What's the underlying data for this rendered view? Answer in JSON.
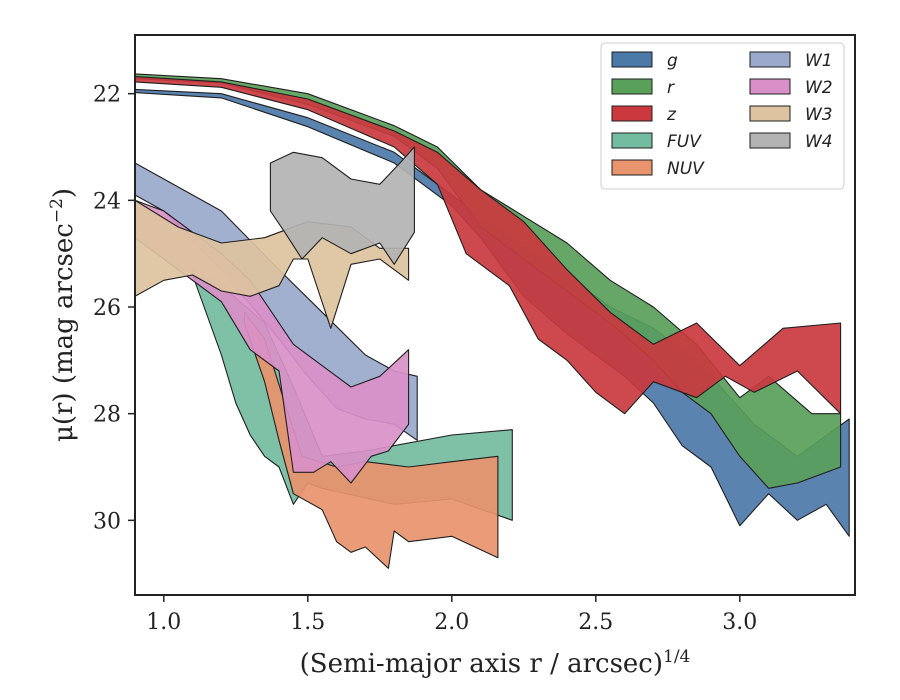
{
  "chart_data": {
    "type": "area",
    "xlabel": "(Semi-major axis r / arcsec)",
    "xlabel_sup": "1/4",
    "ylabel": "μ(r) (mag arcsec",
    "ylabel_sup": "−2",
    "ylabel_close": ")",
    "xlim": [
      0.9,
      3.4
    ],
    "ylim": [
      31.4,
      20.9
    ],
    "y_inverted": true,
    "xticks": [
      1.0,
      1.5,
      2.0,
      2.5,
      3.0
    ],
    "xtick_labels": [
      "1.0",
      "1.5",
      "2.0",
      "2.5",
      "3.0"
    ],
    "yticks": [
      22,
      24,
      26,
      28,
      30
    ],
    "ytick_labels": [
      "22",
      "24",
      "26",
      "28",
      "30"
    ],
    "legend_position": "top-right",
    "legend_columns": 2,
    "series": [
      {
        "name": "g",
        "color": "#4c7aa8",
        "upper": [
          [
            0.9,
            21.92
          ],
          [
            1.2,
            22.0
          ],
          [
            1.5,
            22.45
          ],
          [
            1.8,
            23.1
          ],
          [
            2.0,
            23.9
          ],
          [
            2.2,
            24.7
          ],
          [
            2.4,
            25.4
          ],
          [
            2.55,
            26.0
          ],
          [
            2.7,
            26.4
          ],
          [
            2.85,
            27.0
          ],
          [
            2.95,
            27.6
          ],
          [
            3.05,
            28.2
          ],
          [
            3.2,
            28.8
          ],
          [
            3.38,
            28.1
          ]
        ],
        "lower": [
          [
            3.38,
            30.3
          ],
          [
            3.3,
            29.7
          ],
          [
            3.2,
            30.0
          ],
          [
            3.1,
            29.5
          ],
          [
            3.0,
            30.1
          ],
          [
            2.9,
            29.0
          ],
          [
            2.8,
            28.6
          ],
          [
            2.7,
            27.8
          ],
          [
            2.6,
            27.3
          ],
          [
            2.5,
            26.9
          ],
          [
            2.4,
            26.5
          ],
          [
            2.25,
            25.8
          ],
          [
            2.1,
            24.7
          ],
          [
            2.0,
            24.1
          ],
          [
            1.8,
            23.3
          ],
          [
            1.5,
            22.62
          ],
          [
            1.2,
            22.08
          ],
          [
            0.9,
            21.98
          ]
        ]
      },
      {
        "name": "r",
        "color": "#59a05b",
        "upper": [
          [
            0.9,
            21.63
          ],
          [
            1.2,
            21.72
          ],
          [
            1.5,
            22.0
          ],
          [
            1.8,
            22.6
          ],
          [
            1.95,
            23.0
          ],
          [
            2.1,
            23.8
          ],
          [
            2.25,
            24.3
          ],
          [
            2.4,
            24.8
          ],
          [
            2.55,
            25.5
          ],
          [
            2.7,
            26.0
          ],
          [
            2.85,
            26.7
          ],
          [
            3.0,
            27.7
          ],
          [
            3.1,
            27.3
          ],
          [
            3.25,
            28.0
          ],
          [
            3.35,
            28.0
          ]
        ],
        "lower": [
          [
            3.35,
            29.0
          ],
          [
            3.2,
            29.3
          ],
          [
            3.1,
            29.4
          ],
          [
            3.0,
            28.8
          ],
          [
            2.9,
            28.0
          ],
          [
            2.8,
            27.6
          ],
          [
            2.7,
            27.0
          ],
          [
            2.55,
            26.3
          ],
          [
            2.4,
            25.7
          ],
          [
            2.25,
            25.1
          ],
          [
            2.1,
            24.5
          ],
          [
            1.95,
            23.4
          ],
          [
            1.8,
            22.8
          ],
          [
            1.5,
            22.2
          ],
          [
            1.2,
            21.8
          ],
          [
            0.9,
            21.72
          ]
        ]
      },
      {
        "name": "z",
        "color": "#c9393e",
        "upper": [
          [
            0.9,
            21.68
          ],
          [
            1.2,
            21.78
          ],
          [
            1.5,
            22.1
          ],
          [
            1.8,
            22.7
          ],
          [
            1.95,
            23.1
          ],
          [
            2.1,
            23.8
          ],
          [
            2.25,
            24.4
          ],
          [
            2.4,
            25.3
          ],
          [
            2.55,
            26.1
          ],
          [
            2.7,
            26.7
          ],
          [
            2.85,
            26.3
          ],
          [
            3.0,
            27.1
          ],
          [
            3.15,
            26.4
          ],
          [
            3.35,
            26.3
          ]
        ],
        "lower": [
          [
            3.35,
            28.0
          ],
          [
            3.2,
            27.2
          ],
          [
            3.05,
            27.6
          ],
          [
            2.95,
            27.3
          ],
          [
            2.85,
            27.7
          ],
          [
            2.7,
            27.4
          ],
          [
            2.6,
            28.0
          ],
          [
            2.5,
            27.6
          ],
          [
            2.4,
            27.0
          ],
          [
            2.3,
            26.6
          ],
          [
            2.2,
            25.6
          ],
          [
            2.05,
            25.0
          ],
          [
            1.95,
            23.7
          ],
          [
            1.8,
            23.0
          ],
          [
            1.5,
            22.3
          ],
          [
            1.2,
            21.88
          ],
          [
            0.9,
            21.78
          ]
        ]
      },
      {
        "name": "FUV",
        "color": "#74bca0",
        "upper": [
          [
            1.1,
            25.3
          ],
          [
            1.2,
            25.6
          ],
          [
            1.35,
            26.3
          ],
          [
            1.45,
            27.5
          ],
          [
            1.55,
            28.8
          ],
          [
            1.7,
            28.7
          ],
          [
            2.0,
            28.4
          ],
          [
            2.21,
            28.3
          ]
        ],
        "lower": [
          [
            2.21,
            30.0
          ],
          [
            2.0,
            29.6
          ],
          [
            1.8,
            29.7
          ],
          [
            1.55,
            29.4
          ],
          [
            1.5,
            29.3
          ],
          [
            1.45,
            29.7
          ],
          [
            1.4,
            29.0
          ],
          [
            1.35,
            28.8
          ],
          [
            1.3,
            28.4
          ],
          [
            1.25,
            27.8
          ],
          [
            1.2,
            26.9
          ],
          [
            1.1,
            25.4
          ]
        ]
      },
      {
        "name": "NUV",
        "color": "#e8946c",
        "upper": [
          [
            1.28,
            26.1
          ],
          [
            1.35,
            26.6
          ],
          [
            1.42,
            27.8
          ],
          [
            1.48,
            28.8
          ],
          [
            1.6,
            29.0
          ],
          [
            1.7,
            28.9
          ],
          [
            1.85,
            29.0
          ],
          [
            2.0,
            28.9
          ],
          [
            2.16,
            28.8
          ]
        ],
        "lower": [
          [
            2.16,
            30.7
          ],
          [
            2.0,
            30.3
          ],
          [
            1.85,
            30.4
          ],
          [
            1.8,
            30.2
          ],
          [
            1.78,
            30.9
          ],
          [
            1.7,
            30.5
          ],
          [
            1.65,
            30.6
          ],
          [
            1.6,
            30.4
          ],
          [
            1.55,
            29.8
          ],
          [
            1.45,
            29.5
          ],
          [
            1.4,
            28.5
          ],
          [
            1.35,
            27.4
          ],
          [
            1.28,
            26.3
          ]
        ]
      },
      {
        "name": "W1",
        "color": "#9aa9cc",
        "upper": [
          [
            0.9,
            23.3
          ],
          [
            1.0,
            23.6
          ],
          [
            1.2,
            24.2
          ],
          [
            1.4,
            25.3
          ],
          [
            1.55,
            26.1
          ],
          [
            1.7,
            26.9
          ],
          [
            1.8,
            27.2
          ],
          [
            1.88,
            27.3
          ]
        ],
        "lower": [
          [
            1.88,
            28.5
          ],
          [
            1.8,
            28.2
          ],
          [
            1.7,
            28.1
          ],
          [
            1.6,
            27.9
          ],
          [
            1.5,
            27.3
          ],
          [
            1.4,
            26.6
          ],
          [
            1.2,
            25.3
          ],
          [
            1.0,
            24.2
          ],
          [
            0.9,
            23.9
          ]
        ]
      },
      {
        "name": "W2",
        "color": "#d990c8",
        "upper": [
          [
            0.9,
            24.0
          ],
          [
            1.0,
            24.2
          ],
          [
            1.2,
            25.0
          ],
          [
            1.3,
            25.5
          ],
          [
            1.45,
            26.7
          ],
          [
            1.55,
            27.1
          ],
          [
            1.65,
            27.5
          ],
          [
            1.75,
            27.3
          ],
          [
            1.85,
            26.8
          ]
        ],
        "lower": [
          [
            1.85,
            28.2
          ],
          [
            1.78,
            28.7
          ],
          [
            1.72,
            28.8
          ],
          [
            1.65,
            29.3
          ],
          [
            1.58,
            28.9
          ],
          [
            1.52,
            29.1
          ],
          [
            1.45,
            29.1
          ],
          [
            1.4,
            27.2
          ],
          [
            1.3,
            26.8
          ],
          [
            1.2,
            25.9
          ],
          [
            1.0,
            25.1
          ],
          [
            0.9,
            24.7
          ]
        ]
      },
      {
        "name": "W3",
        "color": "#ddc3a0",
        "upper": [
          [
            0.9,
            24.0
          ],
          [
            1.05,
            24.5
          ],
          [
            1.2,
            24.8
          ],
          [
            1.35,
            24.7
          ],
          [
            1.5,
            24.4
          ],
          [
            1.65,
            24.5
          ],
          [
            1.75,
            24.9
          ],
          [
            1.85,
            24.9
          ]
        ],
        "lower": [
          [
            1.85,
            25.5
          ],
          [
            1.75,
            25.1
          ],
          [
            1.65,
            25.2
          ],
          [
            1.58,
            26.4
          ],
          [
            1.5,
            25.1
          ],
          [
            1.45,
            25.1
          ],
          [
            1.4,
            25.6
          ],
          [
            1.3,
            25.8
          ],
          [
            1.2,
            25.7
          ],
          [
            1.1,
            25.4
          ],
          [
            1.0,
            25.5
          ],
          [
            0.9,
            25.8
          ]
        ]
      },
      {
        "name": "W4",
        "color": "#b3b3b3",
        "upper": [
          [
            1.37,
            23.3
          ],
          [
            1.45,
            23.1
          ],
          [
            1.55,
            23.2
          ],
          [
            1.65,
            23.6
          ],
          [
            1.75,
            23.7
          ],
          [
            1.82,
            23.3
          ],
          [
            1.87,
            23.0
          ]
        ],
        "lower": [
          [
            1.87,
            24.6
          ],
          [
            1.8,
            25.2
          ],
          [
            1.75,
            24.8
          ],
          [
            1.65,
            25.0
          ],
          [
            1.55,
            24.7
          ],
          [
            1.48,
            25.1
          ],
          [
            1.42,
            24.6
          ],
          [
            1.37,
            24.2
          ]
        ]
      }
    ]
  }
}
